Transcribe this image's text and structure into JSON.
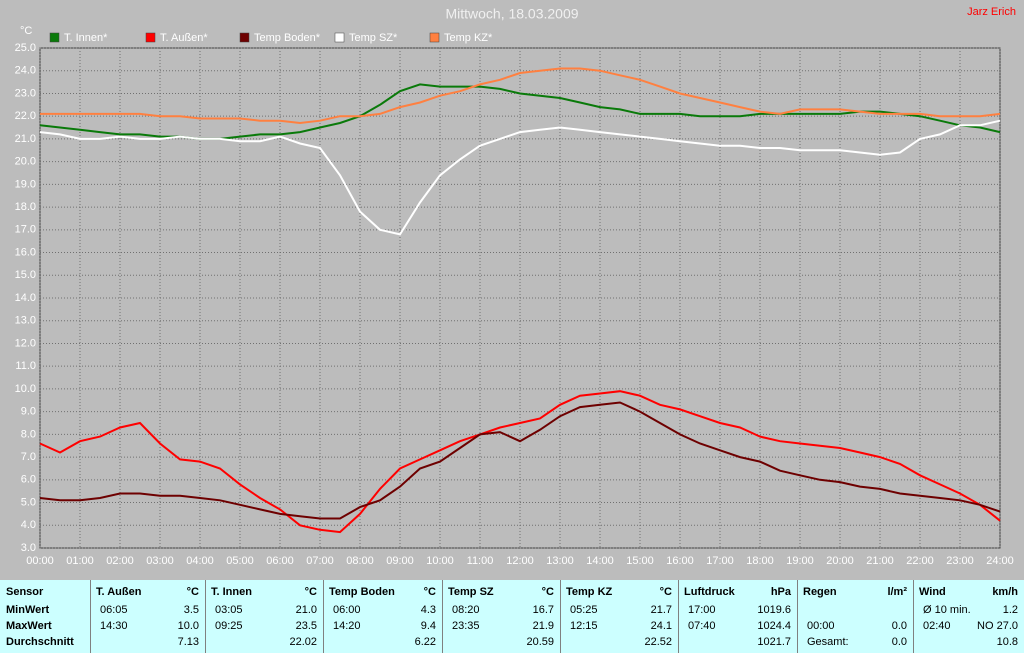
{
  "chart_data": {
    "type": "line",
    "title": "Mittwoch, 18.03.2009",
    "annotation": "Jarz Erich",
    "y_label": "°C",
    "grid": true,
    "x": [
      0,
      0.5,
      1,
      1.5,
      2,
      2.5,
      3,
      3.5,
      4,
      4.5,
      5,
      5.5,
      6,
      6.5,
      7,
      7.5,
      8,
      8.5,
      9,
      9.5,
      10,
      10.5,
      11,
      11.5,
      12,
      12.5,
      13,
      13.5,
      14,
      14.5,
      15,
      15.5,
      16,
      16.5,
      17,
      17.5,
      18,
      18.5,
      19,
      19.5,
      20,
      20.5,
      21,
      21.5,
      22,
      22.5,
      23,
      23.5,
      24
    ],
    "xlim": [
      0,
      24
    ],
    "xticks": [
      {
        "value": 0,
        "label": "00:00"
      },
      {
        "value": 1,
        "label": "01:00"
      },
      {
        "value": 2,
        "label": "02:00"
      },
      {
        "value": 3,
        "label": "03:00"
      },
      {
        "value": 4,
        "label": "04:00"
      },
      {
        "value": 5,
        "label": "05:00"
      },
      {
        "value": 6,
        "label": "06:00"
      },
      {
        "value": 7,
        "label": "07:00"
      },
      {
        "value": 8,
        "label": "08:00"
      },
      {
        "value": 9,
        "label": "09:00"
      },
      {
        "value": 10,
        "label": "10:00"
      },
      {
        "value": 11,
        "label": "11:00"
      },
      {
        "value": 12,
        "label": "12:00"
      },
      {
        "value": 13,
        "label": "13:00"
      },
      {
        "value": 14,
        "label": "14:00"
      },
      {
        "value": 15,
        "label": "15:00"
      },
      {
        "value": 16,
        "label": "16:00"
      },
      {
        "value": 17,
        "label": "17:00"
      },
      {
        "value": 18,
        "label": "18:00"
      },
      {
        "value": 19,
        "label": "19:00"
      },
      {
        "value": 20,
        "label": "20:00"
      },
      {
        "value": 21,
        "label": "21:00"
      },
      {
        "value": 22,
        "label": "22:00"
      },
      {
        "value": 23,
        "label": "23:00"
      },
      {
        "value": 24,
        "label": "24:00"
      }
    ],
    "ylim": [
      3,
      25
    ],
    "yticks": [
      {
        "value": 3,
        "label": "3.0"
      },
      {
        "value": 4,
        "label": "4.0"
      },
      {
        "value": 5,
        "label": "5.0"
      },
      {
        "value": 6,
        "label": "6.0"
      },
      {
        "value": 7,
        "label": "7.0"
      },
      {
        "value": 8,
        "label": "8.0"
      },
      {
        "value": 9,
        "label": "9.0"
      },
      {
        "value": 10,
        "label": "10.0"
      },
      {
        "value": 11,
        "label": "11.0"
      },
      {
        "value": 12,
        "label": "12.0"
      },
      {
        "value": 13,
        "label": "13.0"
      },
      {
        "value": 14,
        "label": "14.0"
      },
      {
        "value": 15,
        "label": "15.0"
      },
      {
        "value": 16,
        "label": "16.0"
      },
      {
        "value": 17,
        "label": "17.0"
      },
      {
        "value": 18,
        "label": "18.0"
      },
      {
        "value": 19,
        "label": "19.0"
      },
      {
        "value": 20,
        "label": "20.0"
      },
      {
        "value": 21,
        "label": "21.0"
      },
      {
        "value": 22,
        "label": "22.0"
      },
      {
        "value": 23,
        "label": "23.0"
      },
      {
        "value": 24,
        "label": "24.0"
      },
      {
        "value": 25,
        "label": "25.0"
      }
    ],
    "series": [
      {
        "name": "T. Innen*",
        "color": "#0a7a0a",
        "values": [
          21.6,
          21.5,
          21.4,
          21.3,
          21.2,
          21.2,
          21.1,
          21.1,
          21.0,
          21.0,
          21.1,
          21.2,
          21.2,
          21.3,
          21.5,
          21.7,
          22.0,
          22.5,
          23.1,
          23.4,
          23.3,
          23.3,
          23.3,
          23.2,
          23.0,
          22.9,
          22.8,
          22.6,
          22.4,
          22.3,
          22.1,
          22.1,
          22.1,
          22.0,
          22.0,
          22.0,
          22.1,
          22.1,
          22.1,
          22.1,
          22.1,
          22.2,
          22.2,
          22.1,
          22.0,
          21.8,
          21.6,
          21.5,
          21.3
        ]
      },
      {
        "name": "T. Außen*",
        "color": "#ff0000",
        "values": [
          7.6,
          7.2,
          7.7,
          7.9,
          8.3,
          8.5,
          7.6,
          6.9,
          6.8,
          6.5,
          5.8,
          5.2,
          4.7,
          4.0,
          3.8,
          3.7,
          4.5,
          5.6,
          6.5,
          6.9,
          7.3,
          7.7,
          8.0,
          8.3,
          8.5,
          8.7,
          9.3,
          9.7,
          9.8,
          9.9,
          9.7,
          9.3,
          9.1,
          8.8,
          8.5,
          8.3,
          7.9,
          7.7,
          7.6,
          7.5,
          7.4,
          7.2,
          7.0,
          6.7,
          6.2,
          5.8,
          5.4,
          4.9,
          4.2
        ]
      },
      {
        "name": "Temp Boden*",
        "color": "#6e0000",
        "values": [
          5.2,
          5.1,
          5.1,
          5.2,
          5.4,
          5.4,
          5.3,
          5.3,
          5.2,
          5.1,
          4.9,
          4.7,
          4.5,
          4.4,
          4.3,
          4.3,
          4.8,
          5.1,
          5.7,
          6.5,
          6.8,
          7.4,
          8.0,
          8.1,
          7.7,
          8.2,
          8.8,
          9.2,
          9.3,
          9.4,
          9.0,
          8.5,
          8.0,
          7.6,
          7.3,
          7.0,
          6.8,
          6.4,
          6.2,
          6.0,
          5.9,
          5.7,
          5.6,
          5.4,
          5.3,
          5.2,
          5.1,
          4.9,
          4.6
        ]
      },
      {
        "name": "Temp SZ*",
        "color": "#ffffff",
        "values": [
          21.3,
          21.2,
          21.0,
          21.0,
          21.1,
          21.0,
          21.0,
          21.1,
          21.0,
          21.0,
          20.9,
          20.9,
          21.1,
          20.8,
          20.6,
          19.4,
          17.8,
          17.0,
          16.8,
          18.2,
          19.4,
          20.1,
          20.7,
          21.0,
          21.3,
          21.4,
          21.5,
          21.4,
          21.3,
          21.2,
          21.1,
          21.0,
          20.9,
          20.8,
          20.7,
          20.7,
          20.6,
          20.6,
          20.5,
          20.5,
          20.5,
          20.4,
          20.3,
          20.4,
          21.0,
          21.2,
          21.6,
          21.6,
          21.8
        ]
      },
      {
        "name": "Temp KZ*",
        "color": "#ff8040",
        "values": [
          22.1,
          22.1,
          22.1,
          22.1,
          22.1,
          22.1,
          22.0,
          22.0,
          21.9,
          21.9,
          21.9,
          21.8,
          21.8,
          21.7,
          21.8,
          22.0,
          22.0,
          22.1,
          22.4,
          22.6,
          22.9,
          23.1,
          23.4,
          23.6,
          23.9,
          24.0,
          24.1,
          24.1,
          24.0,
          23.8,
          23.6,
          23.3,
          23.0,
          22.8,
          22.6,
          22.4,
          22.2,
          22.1,
          22.3,
          22.3,
          22.3,
          22.2,
          22.1,
          22.1,
          22.1,
          22.0,
          22.0,
          22.0,
          22.1
        ]
      }
    ]
  },
  "table": {
    "header": [
      "Sensor",
      [
        "T. Außen",
        "°C"
      ],
      [
        "T. Innen",
        "°C"
      ],
      [
        "Temp Boden",
        "°C"
      ],
      [
        "Temp SZ",
        "°C"
      ],
      [
        "Temp KZ",
        "°C"
      ],
      [
        "Luftdruck",
        "hPa"
      ],
      [
        "Regen",
        "l/m²"
      ],
      [
        "Wind",
        "km/h"
      ]
    ],
    "rows": [
      {
        "label": "MinWert",
        "cells": [
          [
            "06:05",
            "3.5"
          ],
          [
            "03:05",
            "21.0"
          ],
          [
            "06:00",
            "4.3"
          ],
          [
            "08:20",
            "16.7"
          ],
          [
            "05:25",
            "21.7"
          ],
          [
            "17:00",
            "1019.6"
          ],
          null,
          [
            "Ø 10 min.",
            "1.2"
          ]
        ]
      },
      {
        "label": "MaxWert",
        "cells": [
          [
            "14:30",
            "10.0"
          ],
          [
            "09:25",
            "23.5"
          ],
          [
            "14:20",
            "9.4"
          ],
          [
            "23:35",
            "21.9"
          ],
          [
            "12:15",
            "24.1"
          ],
          [
            "07:40",
            "1024.4"
          ],
          [
            "00:00",
            "0.0"
          ],
          [
            "02:40",
            "NO 27.0"
          ]
        ]
      },
      {
        "label": "Durchschnitt",
        "cells": [
          [
            null,
            "7.13"
          ],
          [
            null,
            "22.02"
          ],
          [
            null,
            "6.22"
          ],
          [
            null,
            "20.59"
          ],
          [
            null,
            "22.52"
          ],
          [
            null,
            "1021.7"
          ],
          [
            "Gesamt:",
            "0.0"
          ],
          [
            null,
            "10.8"
          ]
        ]
      }
    ]
  }
}
